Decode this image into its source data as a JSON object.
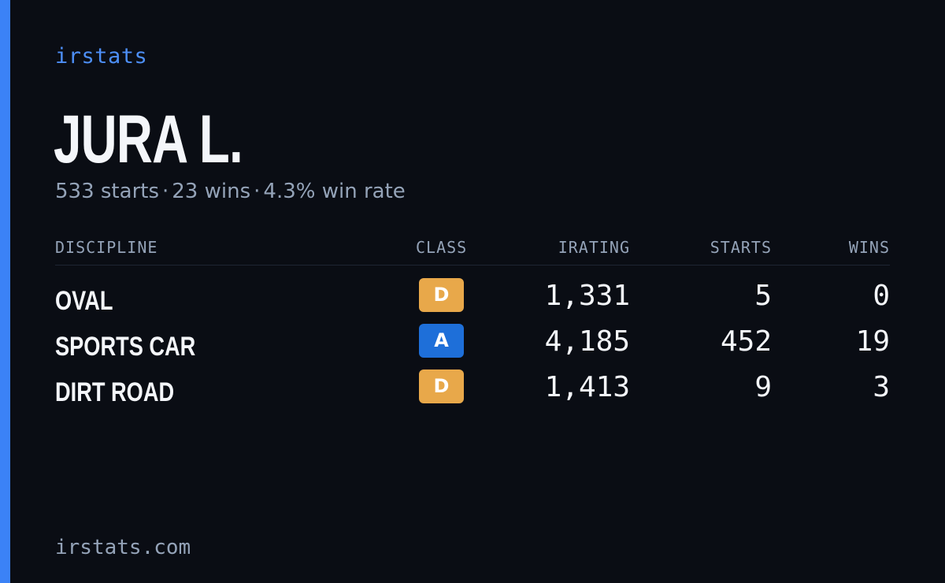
{
  "brand": "irstats",
  "driver": {
    "name": "JURA L."
  },
  "summary": {
    "starts": "533 starts",
    "wins": "23 wins",
    "win_rate": "4.3% win rate",
    "separator": "·"
  },
  "table": {
    "headers": {
      "discipline": "DISCIPLINE",
      "class": "CLASS",
      "irating": "IRATING",
      "starts": "STARTS",
      "wins": "WINS"
    },
    "rows": [
      {
        "discipline": "OVAL",
        "class": "D",
        "irating": "1,331",
        "starts": "5",
        "wins": "0"
      },
      {
        "discipline": "SPORTS CAR",
        "class": "A",
        "irating": "4,185",
        "starts": "452",
        "wins": "19"
      },
      {
        "discipline": "DIRT ROAD",
        "class": "D",
        "irating": "1,413",
        "starts": "9",
        "wins": "3"
      }
    ]
  },
  "footer": "irstats.com",
  "colors": {
    "background": "#0a0d14",
    "accent": "#3b82f6",
    "class_d": "#e8a84a",
    "class_a": "#1e6fd9",
    "muted_text": "#94a3b8"
  }
}
